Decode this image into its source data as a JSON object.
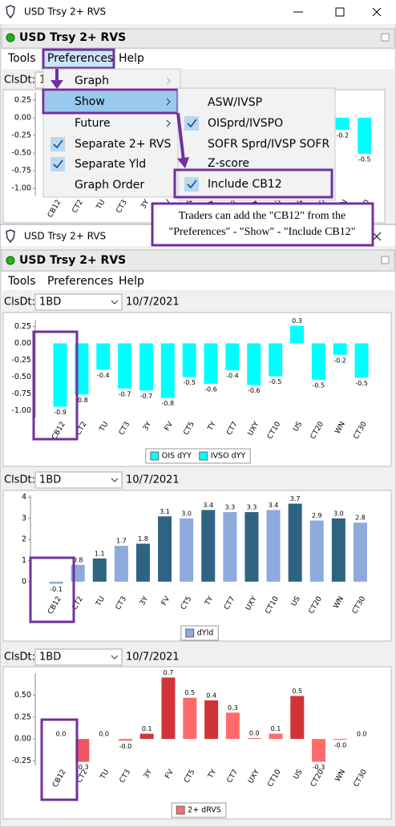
{
  "window": {
    "title": "USD Trsy 2+ RVS",
    "panel_title": "USD Trsy 2+ RVS",
    "menu": [
      "Tools",
      "Preferences",
      "Help"
    ],
    "date_label": "ClsDt:",
    "period": "1BD",
    "date": "10/7/2021"
  },
  "preferences_menu": {
    "items": [
      "Graph",
      "Show",
      "Future",
      "Separate 2+ RVS",
      "Separate Yld",
      "Graph Order"
    ],
    "checked": [
      false,
      false,
      false,
      true,
      true,
      false
    ],
    "disabled": [
      true,
      false,
      false,
      false,
      false,
      false
    ],
    "submenu": [
      true,
      true,
      true,
      false,
      false,
      false
    ]
  },
  "show_submenu": {
    "items": [
      "ASW/IVSP",
      "OISprd/IVSPO",
      "SOFR Sprd/IVSP SOFR",
      "Z-score",
      "Include CB12"
    ],
    "checked": [
      false,
      true,
      false,
      false,
      true
    ]
  },
  "callout": {
    "lines": [
      "Traders can add the \"CB12\" from the",
      "\"Preferences\" - \"Show\" - \"Include CB12\""
    ]
  },
  "chart_data": [
    {
      "type": "bar",
      "categories": [
        "CB12",
        "CT2",
        "TU",
        "CT3",
        "3Y",
        "FV",
        "CT5",
        "TY",
        "CT7",
        "UXY",
        "CT10",
        "US",
        "CT20",
        "WN",
        "CT30"
      ],
      "series": [
        {
          "name": "OIS dYY",
          "color": "#00ffff",
          "values": [
            -0.94,
            -0.76,
            -0.39,
            -0.67,
            -0.7,
            -0.81,
            -0.5,
            -0.6,
            -0.4,
            -0.62,
            -0.49,
            0.26,
            -0.54,
            -0.17,
            -0.51
          ],
          "value_labels": [
            "-0.9",
            "-0.8",
            "-0.4",
            "-0.7",
            "-0.7",
            "-0.8",
            "-0.5",
            "-0.6",
            "-0.4",
            "-0.6",
            "-0.5",
            "0.3",
            "-0.5",
            "-0.2",
            "-0.5"
          ]
        },
        {
          "name": "IVSO dYY",
          "color": "#00ffff",
          "values": [
            null,
            null,
            null,
            null,
            null,
            null,
            null,
            null,
            null,
            null,
            null,
            null,
            null,
            null,
            null
          ]
        }
      ],
      "ylim": [
        -1.1,
        0.35
      ],
      "yticks": [
        {
          "value": 0.25,
          "label": "0.25"
        },
        {
          "value": 0,
          "label": "0.00"
        },
        {
          "value": -0.25,
          "label": "-0.25"
        },
        {
          "value": -0.5,
          "label": "-0.50"
        },
        {
          "value": -0.75,
          "label": "-0.75"
        },
        {
          "value": -1,
          "label": "-1.00"
        }
      ]
    },
    {
      "type": "bar",
      "categories": [
        "CB12",
        "CT2",
        "TU",
        "CT3",
        "3Y",
        "FV",
        "CT5",
        "TY",
        "CT7",
        "UXY",
        "CT10",
        "US",
        "CT20",
        "WN",
        "CT30"
      ],
      "series": [
        {
          "name": "dYld",
          "color": "#8ea9db",
          "colors": [
            "#8ea9db",
            "#8ea9db",
            "#2e6482",
            "#8ea9db",
            "#2e6482",
            "#2e6482",
            "#8ea9db",
            "#2e6482",
            "#8ea9db",
            "#2e6482",
            "#8ea9db",
            "#2e6482",
            "#8ea9db",
            "#2e6482",
            "#8ea9db"
          ],
          "values": [
            -0.1,
            0.8,
            1.1,
            1.7,
            1.8,
            3.1,
            3.0,
            3.4,
            3.3,
            3.3,
            3.4,
            3.7,
            2.9,
            3.0,
            2.8
          ],
          "value_labels": [
            "-0.1",
            "0.8",
            "1.1",
            "1.7",
            "1.8",
            "3.1",
            "3.0",
            "3.4",
            "3.3",
            "3.3",
            "3.4",
            "3.7",
            "2.9",
            "3.0",
            "2.8"
          ]
        }
      ],
      "ylim": [
        -0.5,
        4.1
      ],
      "yticks": [
        0,
        1,
        2,
        3,
        4
      ]
    },
    {
      "type": "bar",
      "categories": [
        "CB12",
        "CT2",
        "TU",
        "CT3",
        "3Y",
        "FV",
        "CT5",
        "TY",
        "CT7",
        "UXY",
        "CT10",
        "US",
        "CT20",
        "WN",
        "CT30"
      ],
      "series": [
        {
          "name": "2+ dRVS",
          "color": "#ff6b6b",
          "colors": [
            "#ff6b6b",
            "#ee5560",
            "#ff6b6b",
            "#ff6b6b",
            "#d13438",
            "#d13438",
            "#ff6b6b",
            "#d13438",
            "#ff6b6b",
            "#ff6b6b",
            "#ff6b6b",
            "#d13438",
            "#ff6b6b",
            "#ff6b6b",
            "#ff6b6b"
          ],
          "values": [
            0.0,
            -0.26,
            0.0,
            -0.02,
            0.06,
            0.7,
            0.47,
            0.44,
            0.3,
            0.01,
            0.06,
            0.49,
            -0.26,
            -0.01,
            0.0
          ],
          "value_labels": [
            "0.0",
            "-0.3",
            "0.0",
            "-0.0",
            "0.1",
            "0.7",
            "0.5",
            "0.4",
            "0.3",
            "0.0",
            "0.1",
            "0.5",
            "-0.3",
            "-0.0",
            "0.0"
          ]
        }
      ],
      "ylim": [
        -0.3,
        0.75
      ],
      "yticks": [
        {
          "value": 0.5,
          "label": "0.50"
        },
        {
          "value": 0.25,
          "label": "0.25"
        },
        {
          "value": 0,
          "label": "0.00"
        },
        {
          "value": -0.25,
          "label": "-0.25"
        }
      ]
    }
  ]
}
